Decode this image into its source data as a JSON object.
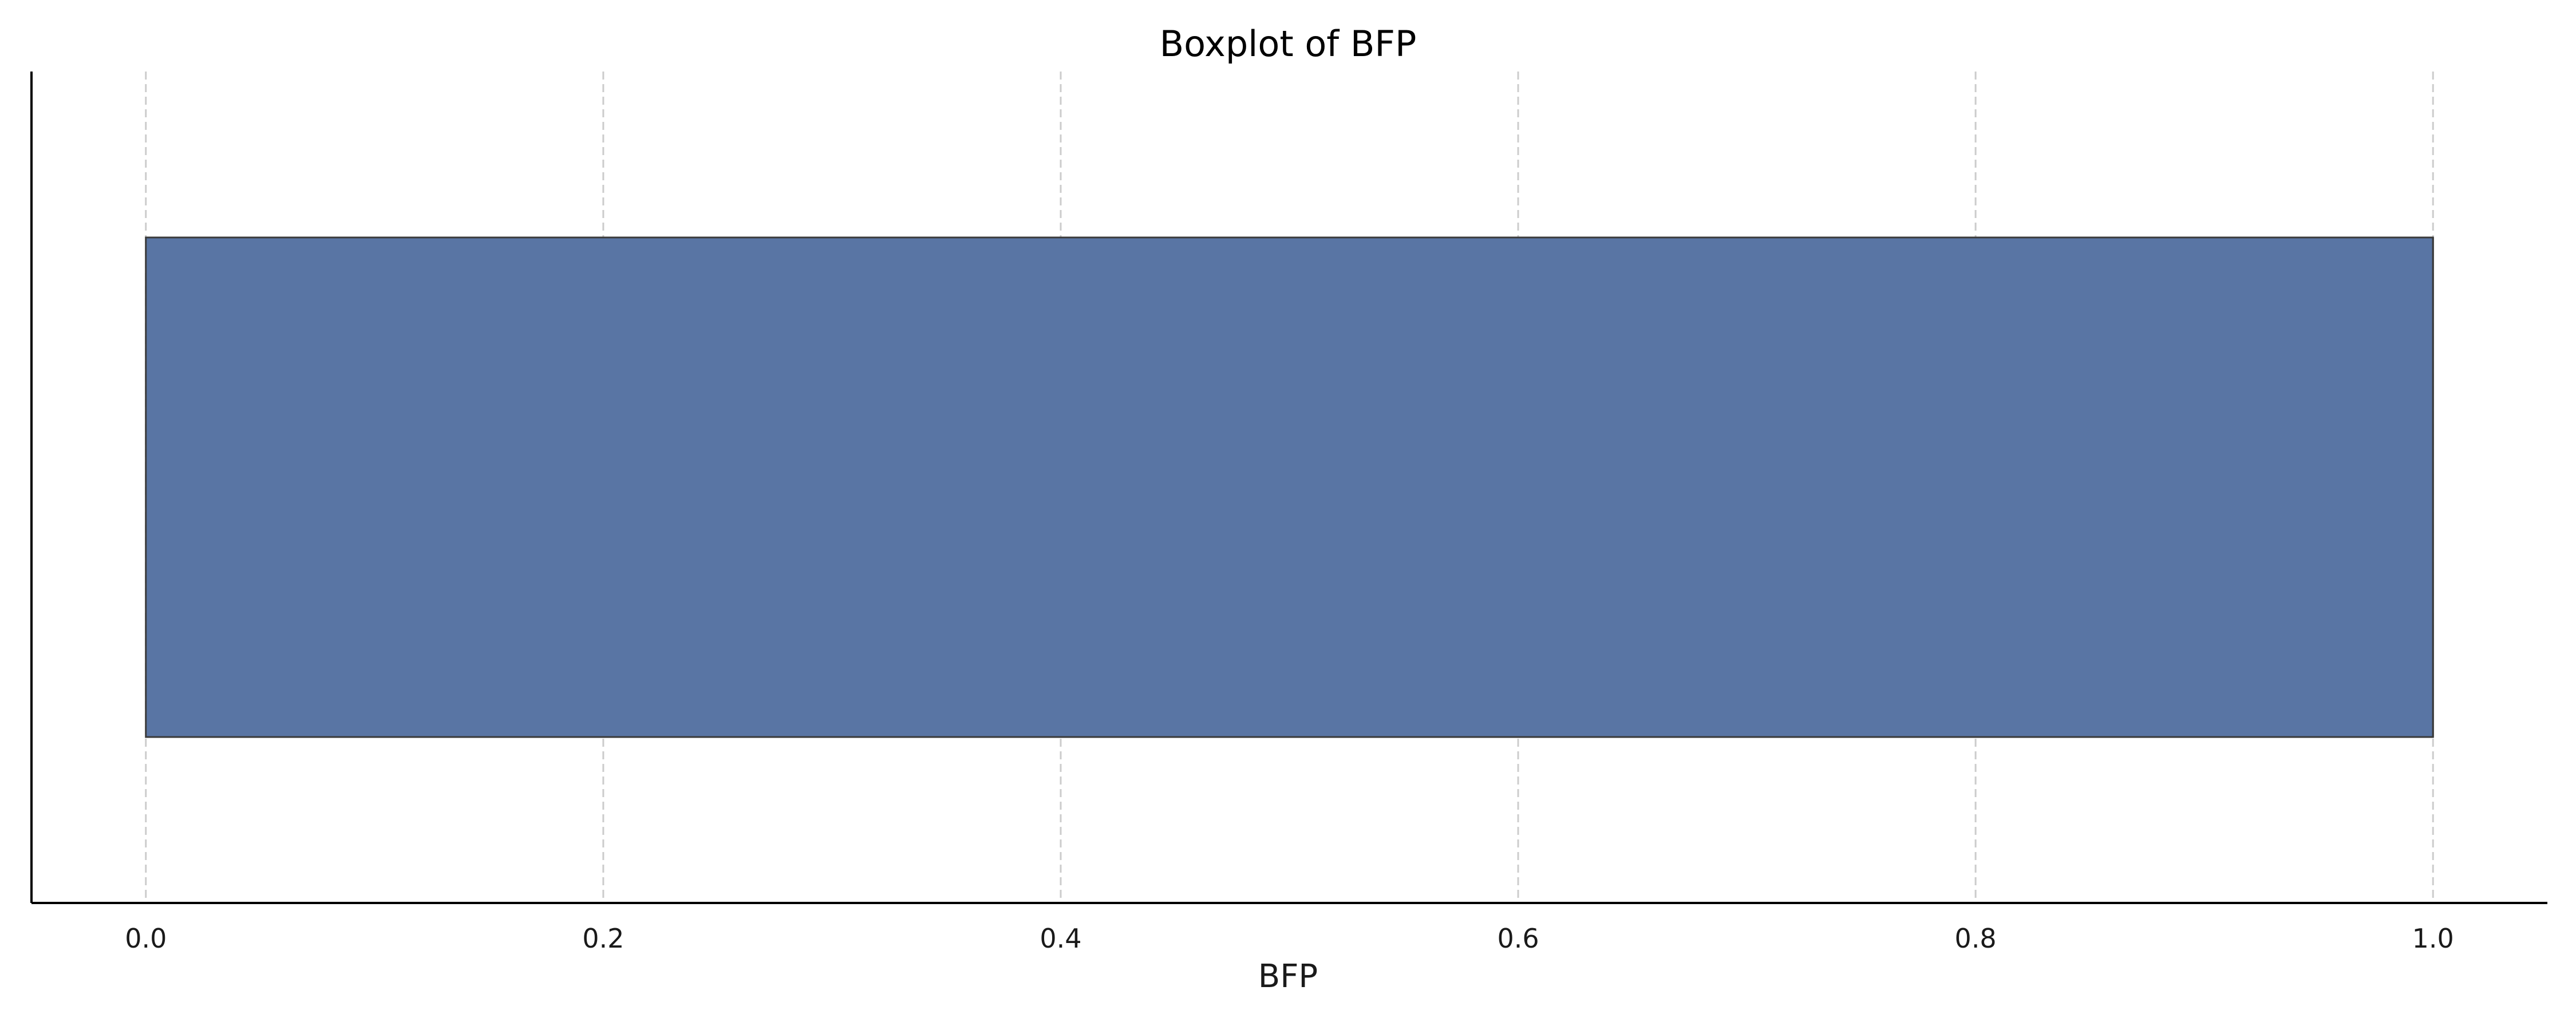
{
  "chart_data": {
    "type": "boxplot",
    "orientation": "horizontal",
    "title": "Boxplot of BFP",
    "xlabel": "BFP",
    "ylabel": "",
    "xlim": [
      -0.05,
      1.05
    ],
    "xticks": [
      0.0,
      0.2,
      0.4,
      0.6,
      0.8,
      1.0
    ],
    "xtick_labels": [
      "0.0",
      "0.2",
      "0.4",
      "0.6",
      "0.8",
      "1.0"
    ],
    "grid": "x-dashed",
    "legend": "none",
    "box": {
      "min": 0.0,
      "q1": 0.0,
      "median": 1.0,
      "q3": 1.0,
      "max": 1.0,
      "color": "#5975a4"
    }
  }
}
